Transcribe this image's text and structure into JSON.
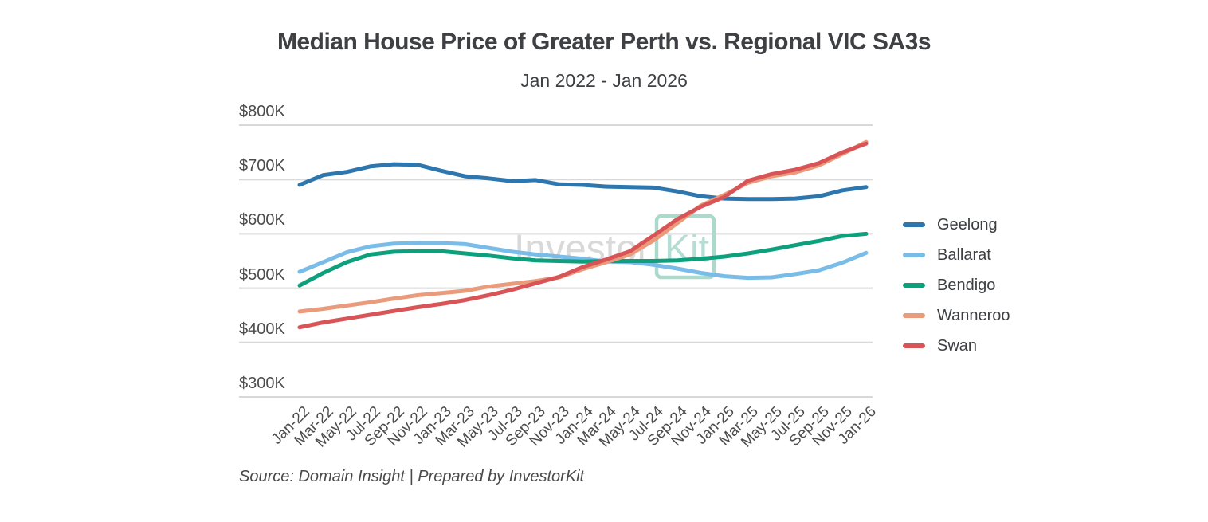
{
  "title": "Median House Price of Greater Perth vs. Regional VIC SA3s",
  "subtitle": "Jan 2022 - Jan 2026",
  "source": "Source: Domain Insight | Prepared by InvestorKit",
  "watermark": {
    "text_gray": "Investor",
    "text_green": "Kit",
    "gray_color": "#d9d9d9",
    "green_color": "#b4ded4",
    "box_color": "#abdacd"
  },
  "colors": {
    "gridline": "#d8d8d8",
    "axis_text": "#4c4c4c",
    "title_text": "#3e4043"
  },
  "chart_data": {
    "type": "line",
    "title": "Median House Price of Greater Perth vs. Regional VIC SA3s",
    "subtitle": "Jan 2022 - Jan 2026",
    "xlabel": "",
    "ylabel": "",
    "units": "AUD thousands",
    "ylim": [
      300,
      800
    ],
    "grid": true,
    "legend_position": "right",
    "y_ticks": [
      "$800K",
      "$700K",
      "$600K",
      "$500K",
      "$400K",
      "$300K"
    ],
    "y_tick_values": [
      800,
      700,
      600,
      500,
      400,
      300
    ],
    "categories": [
      "Jan-22",
      "Mar-22",
      "May-22",
      "Jul-22",
      "Sep-22",
      "Nov-22",
      "Jan-23",
      "Mar-23",
      "May-23",
      "Jul-23",
      "Sep-23",
      "Nov-23",
      "Jan-24",
      "Mar-24",
      "May-24",
      "Jul-24",
      "Sep-24",
      "Nov-24",
      "Jan-25",
      "Mar-25",
      "May-25",
      "Jul-25",
      "Sep-25",
      "Nov-25",
      "Jan-26"
    ],
    "series": [
      {
        "name": "Geelong",
        "color": "#2d76ae",
        "values": [
          690,
          708,
          714,
          724,
          728,
          727,
          716,
          706,
          702,
          697,
          699,
          691,
          690,
          687,
          686,
          685,
          678,
          669,
          665,
          664,
          664,
          665,
          669,
          680,
          686
        ]
      },
      {
        "name": "Ballarat",
        "color": "#7abce8",
        "values": [
          530,
          548,
          566,
          577,
          582,
          583,
          583,
          581,
          574,
          567,
          562,
          558,
          554,
          549,
          548,
          543,
          536,
          528,
          522,
          519,
          520,
          526,
          533,
          547,
          565
        ]
      },
      {
        "name": "Bendigo",
        "color": "#0da07c",
        "values": [
          505,
          528,
          548,
          562,
          567,
          568,
          568,
          564,
          560,
          555,
          551,
          550,
          549,
          550,
          550,
          550,
          551,
          554,
          558,
          564,
          571,
          579,
          587,
          596,
          600
        ]
      },
      {
        "name": "Wanneroo",
        "color": "#e99b7b",
        "values": [
          457,
          462,
          468,
          474,
          481,
          487,
          491,
          495,
          503,
          508,
          513,
          520,
          535,
          548,
          562,
          588,
          620,
          652,
          672,
          694,
          706,
          713,
          726,
          747,
          769
        ]
      },
      {
        "name": "Swan",
        "color": "#d95457",
        "values": [
          428,
          437,
          444,
          451,
          458,
          465,
          471,
          478,
          487,
          497,
          509,
          521,
          539,
          553,
          568,
          597,
          627,
          650,
          668,
          698,
          710,
          718,
          730,
          750,
          766
        ]
      }
    ]
  }
}
